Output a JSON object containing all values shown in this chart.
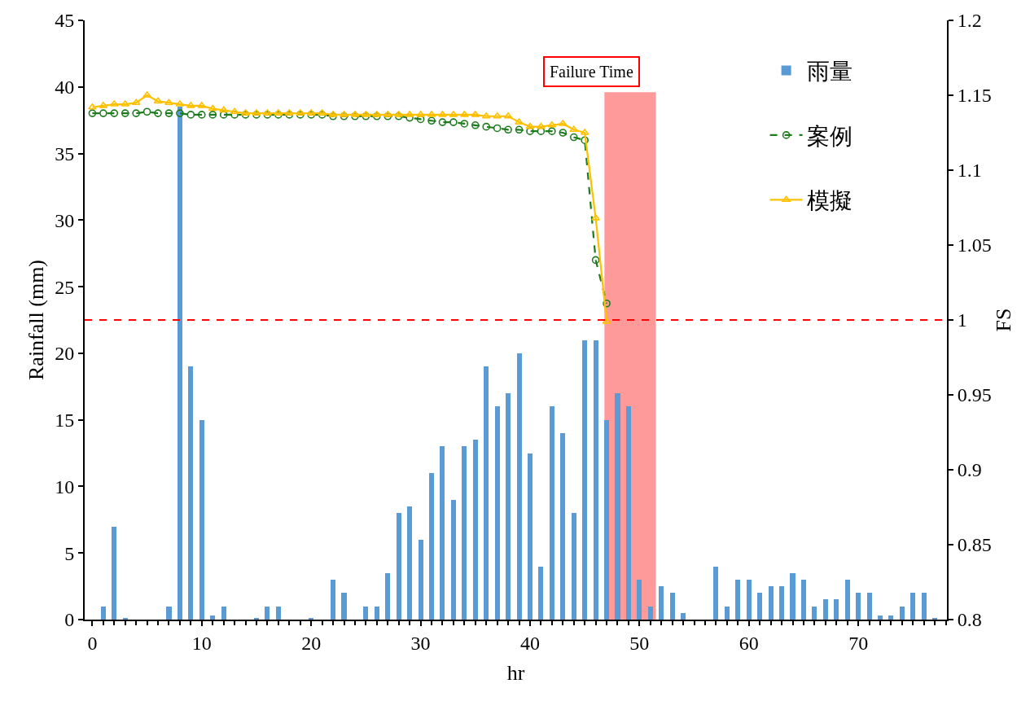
{
  "chart_data": {
    "type": "bar",
    "x": [
      0,
      1,
      2,
      3,
      4,
      5,
      6,
      7,
      8,
      9,
      10,
      11,
      12,
      13,
      14,
      15,
      16,
      17,
      18,
      19,
      20,
      21,
      22,
      23,
      24,
      25,
      26,
      27,
      28,
      29,
      30,
      31,
      32,
      33,
      34,
      35,
      36,
      37,
      38,
      39,
      40,
      41,
      42,
      43,
      44,
      45,
      46,
      47,
      48,
      49,
      50,
      51,
      52,
      53,
      54,
      55,
      56,
      57,
      58,
      59,
      60,
      61,
      62,
      63,
      64,
      65,
      66,
      67,
      68,
      69,
      70,
      71,
      72,
      73,
      74,
      75,
      76,
      77
    ],
    "series": [
      {
        "name": "雨量",
        "color": "#5b9bd5",
        "values": [
          0,
          1,
          7,
          0.1,
          0,
          0,
          0,
          1,
          38.5,
          19,
          15,
          0.3,
          1,
          0,
          0,
          0.1,
          1,
          1,
          0,
          0,
          0.1,
          0,
          3,
          2,
          0,
          1,
          1,
          3.5,
          8,
          8.5,
          6,
          11,
          13,
          9,
          13,
          13.5,
          19,
          16,
          17,
          20,
          12.5,
          4,
          16,
          14,
          8,
          21,
          21,
          15,
          17,
          16,
          3,
          1,
          2.5,
          2,
          0.5,
          0,
          0,
          4,
          1,
          3,
          3,
          2,
          2.5,
          2.5,
          3.5,
          3,
          1,
          1.5,
          1.5,
          3,
          2,
          2,
          0.3,
          0.3,
          1,
          2,
          2,
          0.1
        ]
      },
      {
        "name": "案例",
        "type": "line",
        "axis": "y2",
        "color": "#1e7b1e",
        "marker": "circle",
        "line_style": "dashed",
        "x": [
          0,
          1,
          2,
          3,
          4,
          5,
          6,
          7,
          8,
          9,
          10,
          11,
          12,
          13,
          14,
          15,
          16,
          17,
          18,
          19,
          20,
          21,
          22,
          23,
          24,
          25,
          26,
          27,
          28,
          29,
          30,
          31,
          32,
          33,
          34,
          35,
          36,
          37,
          38,
          39,
          40,
          41,
          42,
          43,
          44,
          45,
          46,
          47
        ],
        "values": [
          1.138,
          1.138,
          1.138,
          1.138,
          1.138,
          1.139,
          1.138,
          1.138,
          1.138,
          1.137,
          1.137,
          1.137,
          1.137,
          1.137,
          1.137,
          1.137,
          1.137,
          1.137,
          1.137,
          1.137,
          1.137,
          1.137,
          1.136,
          1.136,
          1.136,
          1.136,
          1.136,
          1.136,
          1.136,
          1.135,
          1.134,
          1.133,
          1.132,
          1.132,
          1.131,
          1.13,
          1.129,
          1.128,
          1.127,
          1.127,
          1.126,
          1.126,
          1.126,
          1.125,
          1.122,
          1.12,
          1.04,
          1.011
        ]
      },
      {
        "name": "模擬",
        "type": "line",
        "axis": "y2",
        "color": "#ffc000",
        "marker": "triangle",
        "line_style": "solid",
        "x": [
          0,
          1,
          2,
          3,
          4,
          5,
          6,
          7,
          8,
          9,
          10,
          11,
          12,
          13,
          14,
          15,
          16,
          17,
          18,
          19,
          20,
          21,
          22,
          23,
          24,
          25,
          26,
          27,
          28,
          29,
          30,
          31,
          32,
          33,
          34,
          35,
          36,
          37,
          38,
          39,
          40,
          41,
          42,
          43,
          44,
          45,
          46,
          47
        ],
        "values": [
          1.142,
          1.143,
          1.144,
          1.144,
          1.145,
          1.15,
          1.146,
          1.145,
          1.144,
          1.143,
          1.143,
          1.141,
          1.14,
          1.139,
          1.138,
          1.138,
          1.138,
          1.138,
          1.138,
          1.138,
          1.138,
          1.138,
          1.137,
          1.137,
          1.137,
          1.137,
          1.137,
          1.137,
          1.137,
          1.137,
          1.137,
          1.137,
          1.137,
          1.137,
          1.137,
          1.137,
          1.136,
          1.136,
          1.136,
          1.132,
          1.129,
          1.129,
          1.13,
          1.131,
          1.127,
          1.125,
          1.068,
          0.999
        ]
      }
    ],
    "xlabel": "hr",
    "ylabel": "Rainfall (mm)",
    "y2label": "FS",
    "xlim": [
      -0.7,
      78.1
    ],
    "xticks": [
      0,
      10,
      20,
      30,
      40,
      50,
      60,
      70
    ],
    "ylim": [
      0,
      45
    ],
    "yticks": [
      0,
      5,
      10,
      15,
      20,
      25,
      30,
      35,
      40,
      45
    ],
    "y2lim": [
      0.8,
      1.2
    ],
    "y2ticks": [
      {
        "value": 0.8,
        "label": "0.8"
      },
      0.85,
      {
        "value": 0.9,
        "label": "0.9"
      },
      0.95,
      {
        "value": 1.0,
        "label": "1"
      },
      1.05,
      {
        "value": 1.1,
        "label": "1.1"
      },
      1.15,
      {
        "value": 1.2,
        "label": "1.2"
      }
    ],
    "ref_lines": [
      {
        "axis": "y2",
        "value": 1.0,
        "color": "#ff0000",
        "line_style": "dashed"
      }
    ],
    "bands": [
      {
        "axis": "x",
        "from": 46.8,
        "to": 51.5,
        "label": "Failure Time",
        "color": "#ff9a9a"
      }
    ],
    "grid": false,
    "legend": "top right"
  }
}
